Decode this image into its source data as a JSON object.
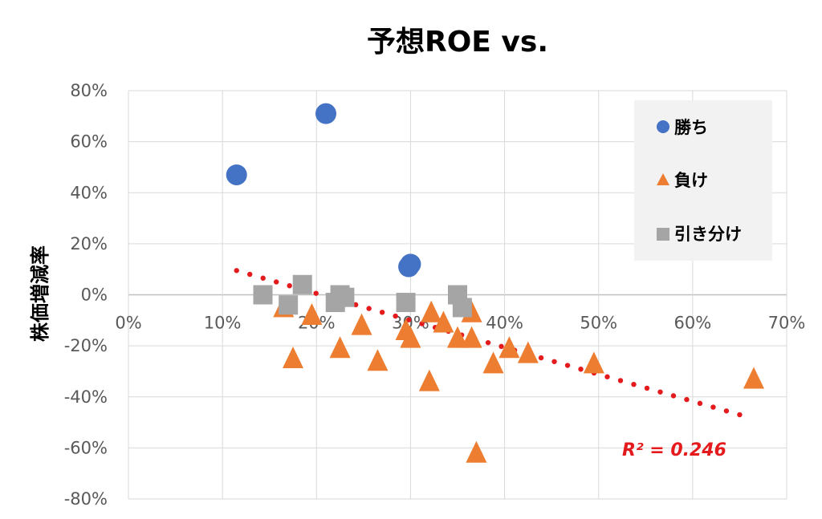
{
  "chart_data": {
    "type": "scatter",
    "title": "予想ROE vs.",
    "ylabel": "株価増減率",
    "xlabel": "",
    "xlim": [
      0,
      0.7
    ],
    "ylim": [
      -0.8,
      0.8
    ],
    "x_ticks": [
      "0%",
      "10%",
      "20%",
      "30%",
      "40%",
      "50%",
      "60%",
      "70%"
    ],
    "y_ticks": [
      "80%",
      "60%",
      "40%",
      "20%",
      "0%",
      "-20%",
      "-40%",
      "-60%",
      "-80%"
    ],
    "grid": true,
    "legend_position": "top-right",
    "series": [
      {
        "name": "勝ち",
        "marker": "circle",
        "color": "#4472c4",
        "points": [
          [
            0.115,
            0.47
          ],
          [
            0.21,
            0.71
          ],
          [
            0.298,
            0.11
          ],
          [
            0.3,
            0.12
          ]
        ]
      },
      {
        "name": "負け",
        "marker": "triangle",
        "color": "#ed7d31",
        "points": [
          [
            0.165,
            -0.05
          ],
          [
            0.175,
            -0.25
          ],
          [
            0.195,
            -0.08
          ],
          [
            0.225,
            -0.21
          ],
          [
            0.248,
            -0.12
          ],
          [
            0.265,
            -0.26
          ],
          [
            0.295,
            -0.14
          ],
          [
            0.3,
            -0.17
          ],
          [
            0.32,
            -0.34
          ],
          [
            0.322,
            -0.07
          ],
          [
            0.335,
            -0.11
          ],
          [
            0.35,
            -0.17
          ],
          [
            0.365,
            -0.07
          ],
          [
            0.365,
            -0.17
          ],
          [
            0.37,
            -0.62
          ],
          [
            0.388,
            -0.27
          ],
          [
            0.405,
            -0.21
          ],
          [
            0.425,
            -0.23
          ],
          [
            0.495,
            -0.27
          ],
          [
            0.665,
            -0.33
          ]
        ]
      },
      {
        "name": "引き分け",
        "marker": "square",
        "color": "#a5a5a5",
        "points": [
          [
            0.143,
            0.0
          ],
          [
            0.17,
            -0.04
          ],
          [
            0.185,
            0.04
          ],
          [
            0.22,
            -0.03
          ],
          [
            0.225,
            0.0
          ],
          [
            0.23,
            -0.01
          ],
          [
            0.295,
            -0.03
          ],
          [
            0.35,
            0.0
          ],
          [
            0.355,
            -0.05
          ]
        ]
      }
    ],
    "trendline": {
      "type": "linear",
      "color": "#e41a1c",
      "x_start": 0.115,
      "y_start": 0.095,
      "x_end": 0.65,
      "y_end": -0.47,
      "label": "R² = 0.246"
    }
  }
}
